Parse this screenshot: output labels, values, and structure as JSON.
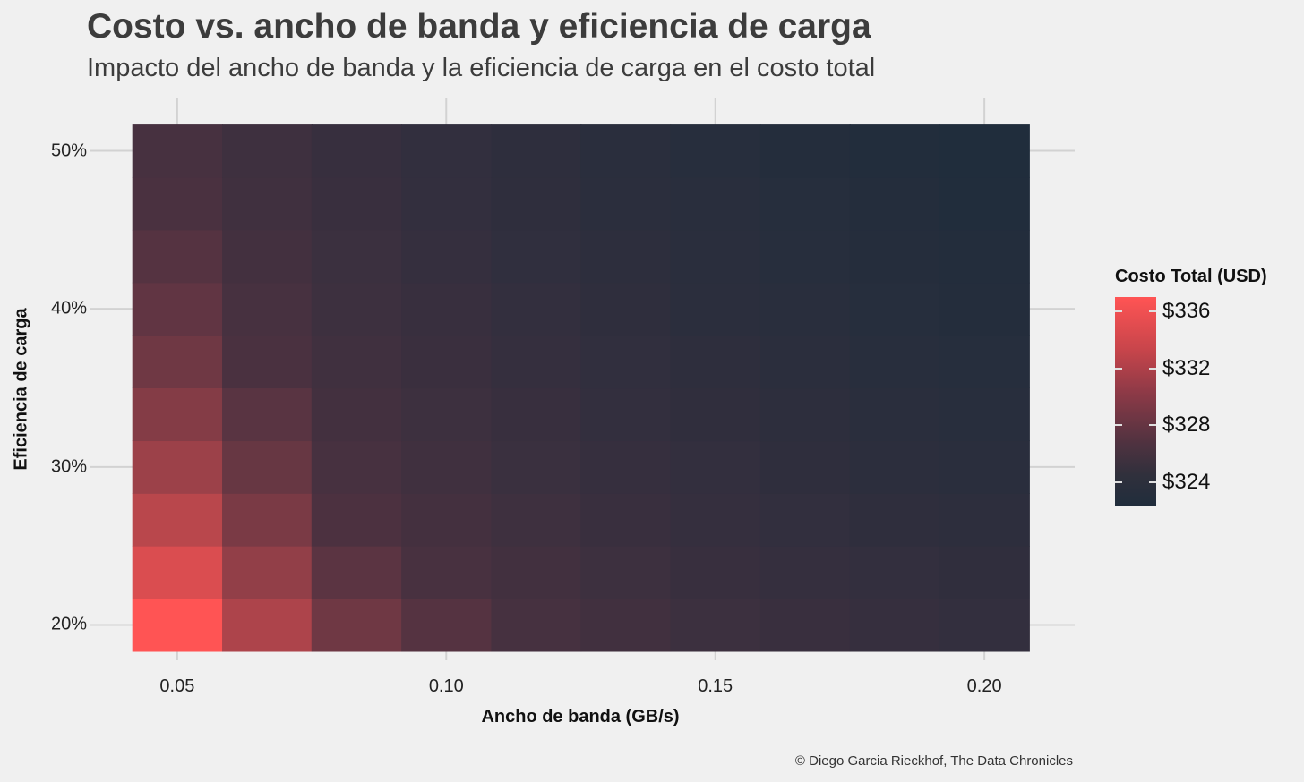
{
  "chart_data": {
    "type": "heatmap",
    "title": "Costo vs. ancho de banda y eficiencia de carga",
    "subtitle": "Impacto del ancho de banda y la eficiencia de carga en el costo total",
    "xlabel": "Ancho de banda (GB/s)",
    "ylabel": "Eficiencia de carga",
    "caption": "© Diego Garcia Rieckhof, The Data Chronicles",
    "x": [
      0.05,
      0.0667,
      0.0833,
      0.1,
      0.1167,
      0.1333,
      0.15,
      0.1667,
      0.1833,
      0.2
    ],
    "y": [
      0.2,
      0.2333,
      0.2667,
      0.3,
      0.3333,
      0.3667,
      0.4,
      0.4333,
      0.4667,
      0.5
    ],
    "xlim": [
      0.0417,
      0.2083
    ],
    "ylim": [
      0.1833,
      0.5167
    ],
    "x_ticks": [
      "0.05",
      "0.10",
      "0.15",
      "0.20"
    ],
    "x_tick_values": [
      0.05,
      0.1,
      0.15,
      0.2
    ],
    "y_ticks": [
      "20%",
      "30%",
      "40%",
      "50%"
    ],
    "y_tick_values": [
      0.2,
      0.3,
      0.4,
      0.5
    ],
    "z": [
      [
        337.0,
        333.0,
        330.0,
        328.7,
        327.6,
        326.9,
        326.2,
        325.8,
        325.4,
        325.0
      ],
      [
        335.2,
        331.7,
        329.0,
        327.9,
        327.0,
        326.3,
        325.7,
        325.3,
        324.9,
        324.5
      ],
      [
        333.6,
        330.5,
        328.3,
        327.3,
        326.5,
        325.8,
        325.3,
        324.8,
        324.4,
        324.1
      ],
      [
        332.2,
        329.6,
        327.7,
        326.8,
        326.0,
        325.4,
        324.9,
        324.4,
        324.0,
        323.7
      ],
      [
        331.0,
        328.9,
        327.2,
        326.3,
        325.6,
        325.0,
        324.5,
        324.1,
        323.7,
        323.4
      ],
      [
        330.0,
        328.2,
        326.8,
        325.9,
        325.2,
        324.7,
        324.2,
        323.8,
        323.4,
        323.1
      ],
      [
        329.3,
        327.7,
        326.4,
        325.6,
        324.9,
        324.4,
        323.9,
        323.5,
        323.2,
        322.9
      ],
      [
        328.7,
        327.2,
        326.1,
        325.3,
        324.6,
        324.1,
        323.7,
        323.3,
        323.0,
        322.7
      ],
      [
        328.2,
        326.8,
        325.8,
        325.0,
        324.4,
        323.9,
        323.5,
        323.1,
        322.8,
        322.5
      ],
      [
        327.8,
        326.5,
        325.5,
        324.8,
        324.2,
        323.7,
        323.3,
        322.9,
        322.6,
        322.3
      ]
    ],
    "color_scale": {
      "title": "Costo Total (USD)",
      "low_color": "#202d3c",
      "mid_color": "#4a3140",
      "high_color": "#ff5454",
      "range": [
        322.3,
        337.0
      ],
      "ticks": [
        324,
        328,
        332,
        336
      ],
      "tick_labels": [
        "$324",
        "$328",
        "$332",
        "$336"
      ]
    },
    "grid": true
  }
}
